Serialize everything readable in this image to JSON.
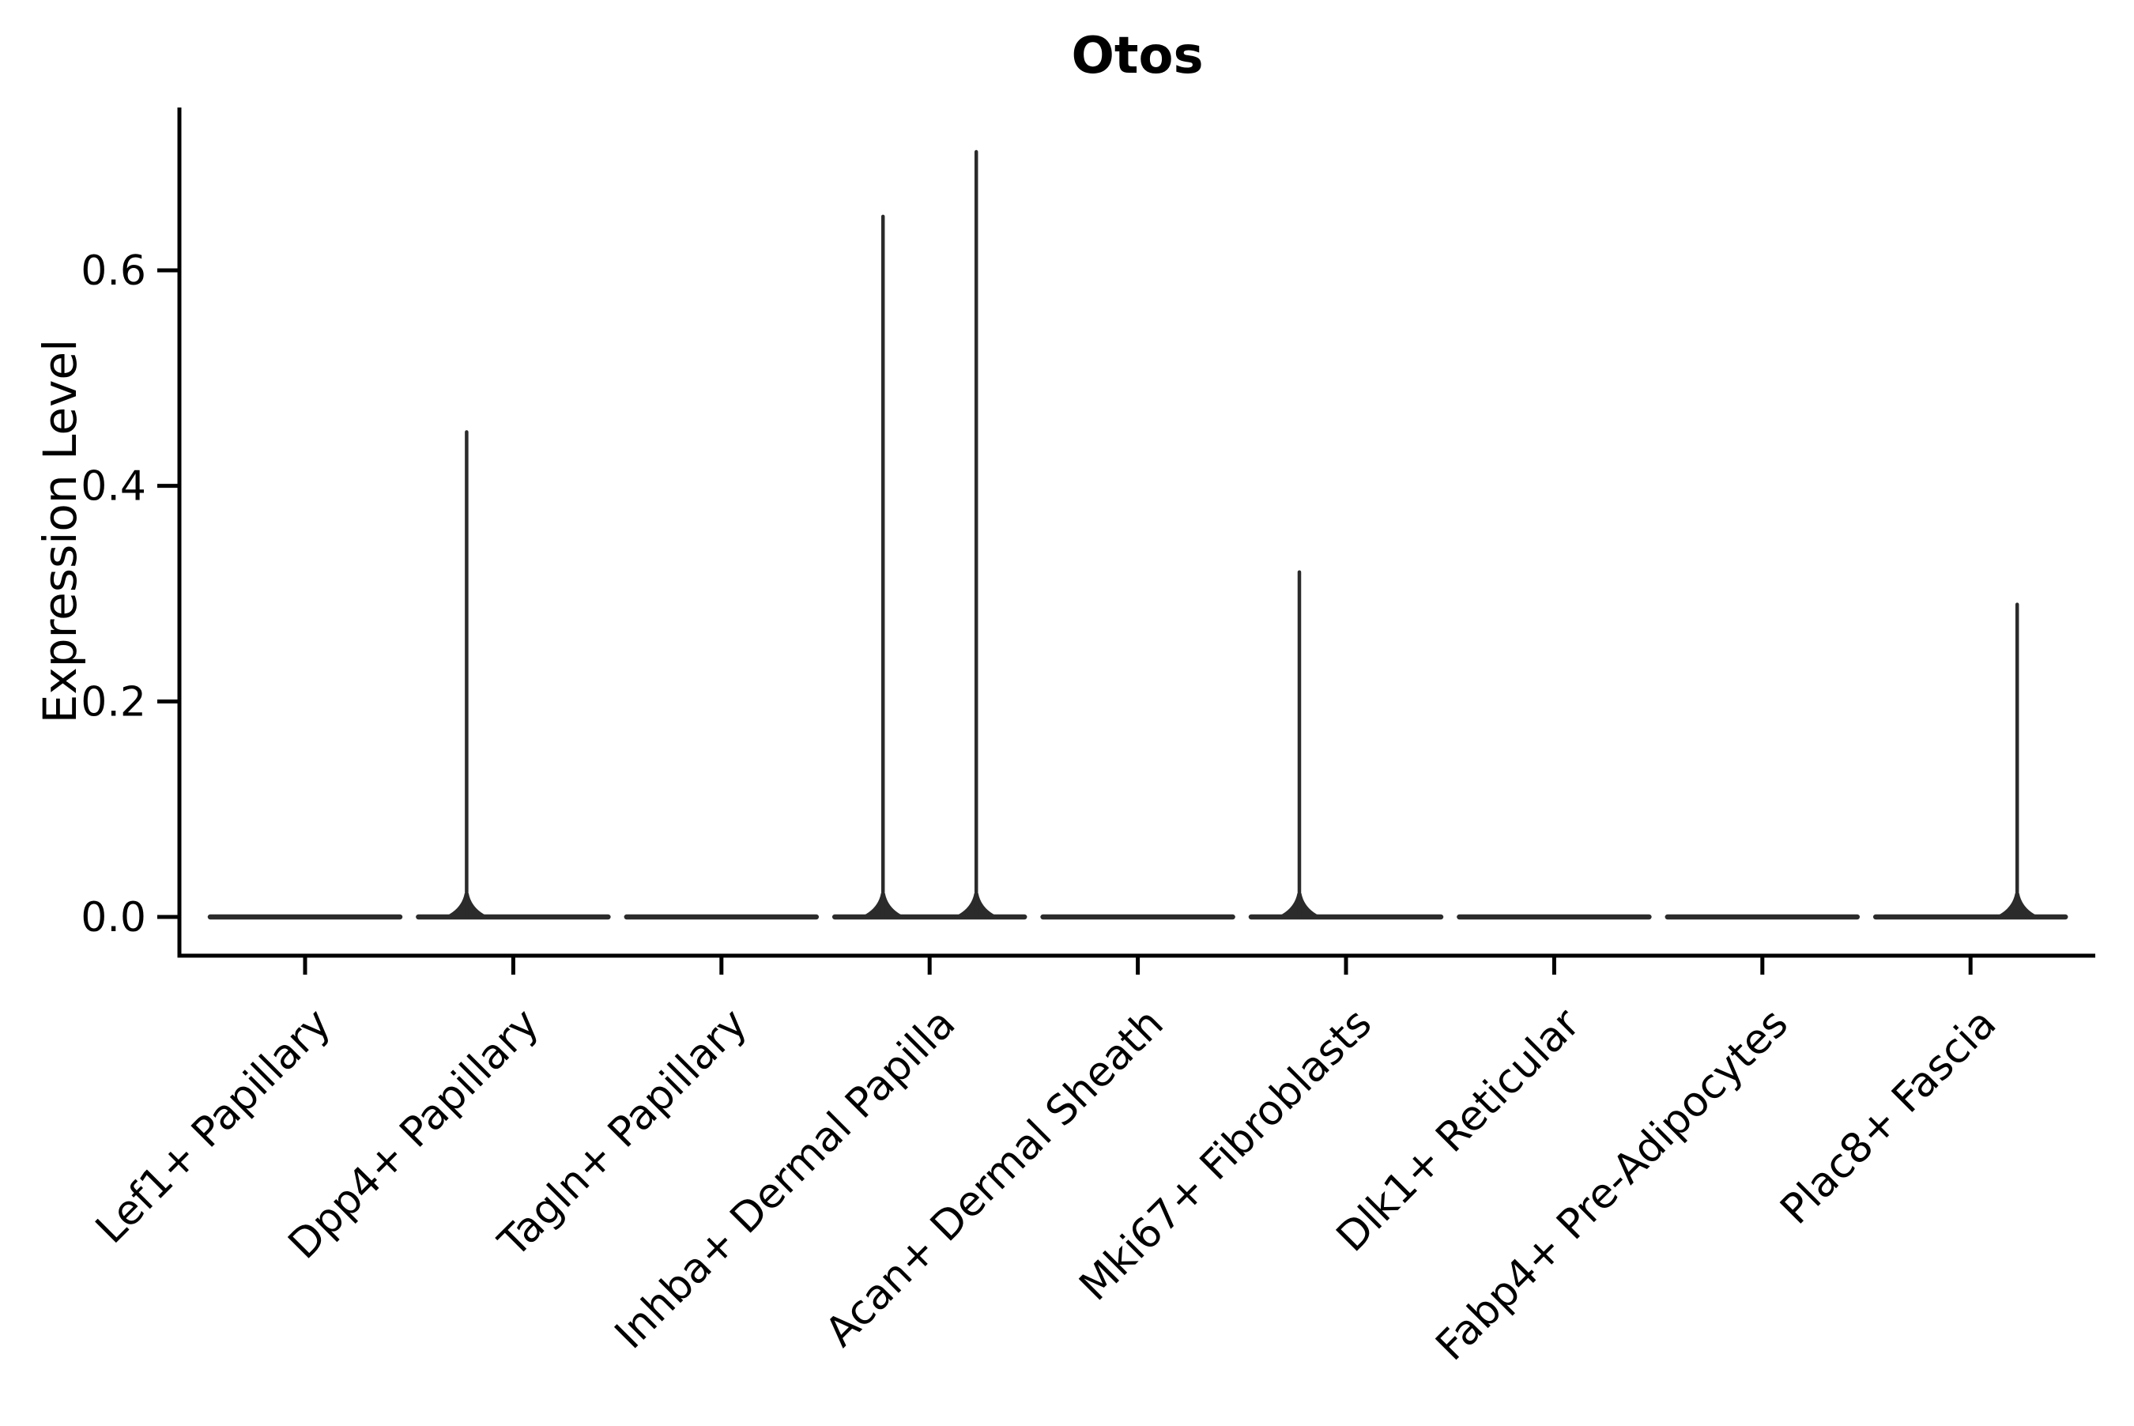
{
  "chart_data": {
    "type": "violin",
    "title": "Otos",
    "xlabel": "",
    "ylabel": "Expression Level",
    "yticks": [
      0.0,
      0.2,
      0.4,
      0.6
    ],
    "ylim": [
      0,
      0.75
    ],
    "grid": false,
    "legend": null,
    "baseline_value": 0.0,
    "note": "Each category shows a flat violin body at expression 0; thin spikes mark sparse high-expression density tails (two half-violins per category).",
    "categories": [
      "Lef1+ Papillary",
      "Dpp4+ Papillary",
      "Tagln+ Papillary",
      "Inhba+ Dermal Papilla",
      "Acan+ Dermal Sheath",
      "Mki67+ Fibroblasts",
      "Dlk1+ Reticular",
      "Fabp4+ Pre-Adipocytes",
      "Plac8+ Fascia"
    ],
    "violins": [
      {
        "category": "Lef1+ Papillary",
        "body_max": 0.0,
        "spikes": []
      },
      {
        "category": "Dpp4+ Papillary",
        "body_max": 0.0,
        "spikes": [
          {
            "side": "left",
            "max": 0.45
          }
        ]
      },
      {
        "category": "Tagln+ Papillary",
        "body_max": 0.0,
        "spikes": []
      },
      {
        "category": "Inhba+ Dermal Papilla",
        "body_max": 0.0,
        "spikes": [
          {
            "side": "left",
            "max": 0.65
          },
          {
            "side": "right",
            "max": 0.71
          }
        ]
      },
      {
        "category": "Acan+ Dermal Sheath",
        "body_max": 0.0,
        "spikes": []
      },
      {
        "category": "Mki67+ Fibroblasts",
        "body_max": 0.0,
        "spikes": [
          {
            "side": "left",
            "max": 0.32
          }
        ]
      },
      {
        "category": "Dlk1+ Reticular",
        "body_max": 0.0,
        "spikes": []
      },
      {
        "category": "Fabp4+ Pre-Adipocytes",
        "body_max": 0.0,
        "spikes": []
      },
      {
        "category": "Plac8+ Fascia",
        "body_max": 0.0,
        "spikes": [
          {
            "side": "right",
            "max": 0.29
          }
        ]
      }
    ],
    "colors": {
      "violin_stroke": "#2b2b2b",
      "axis": "#000000",
      "text": "#000000",
      "background": "#ffffff"
    }
  }
}
